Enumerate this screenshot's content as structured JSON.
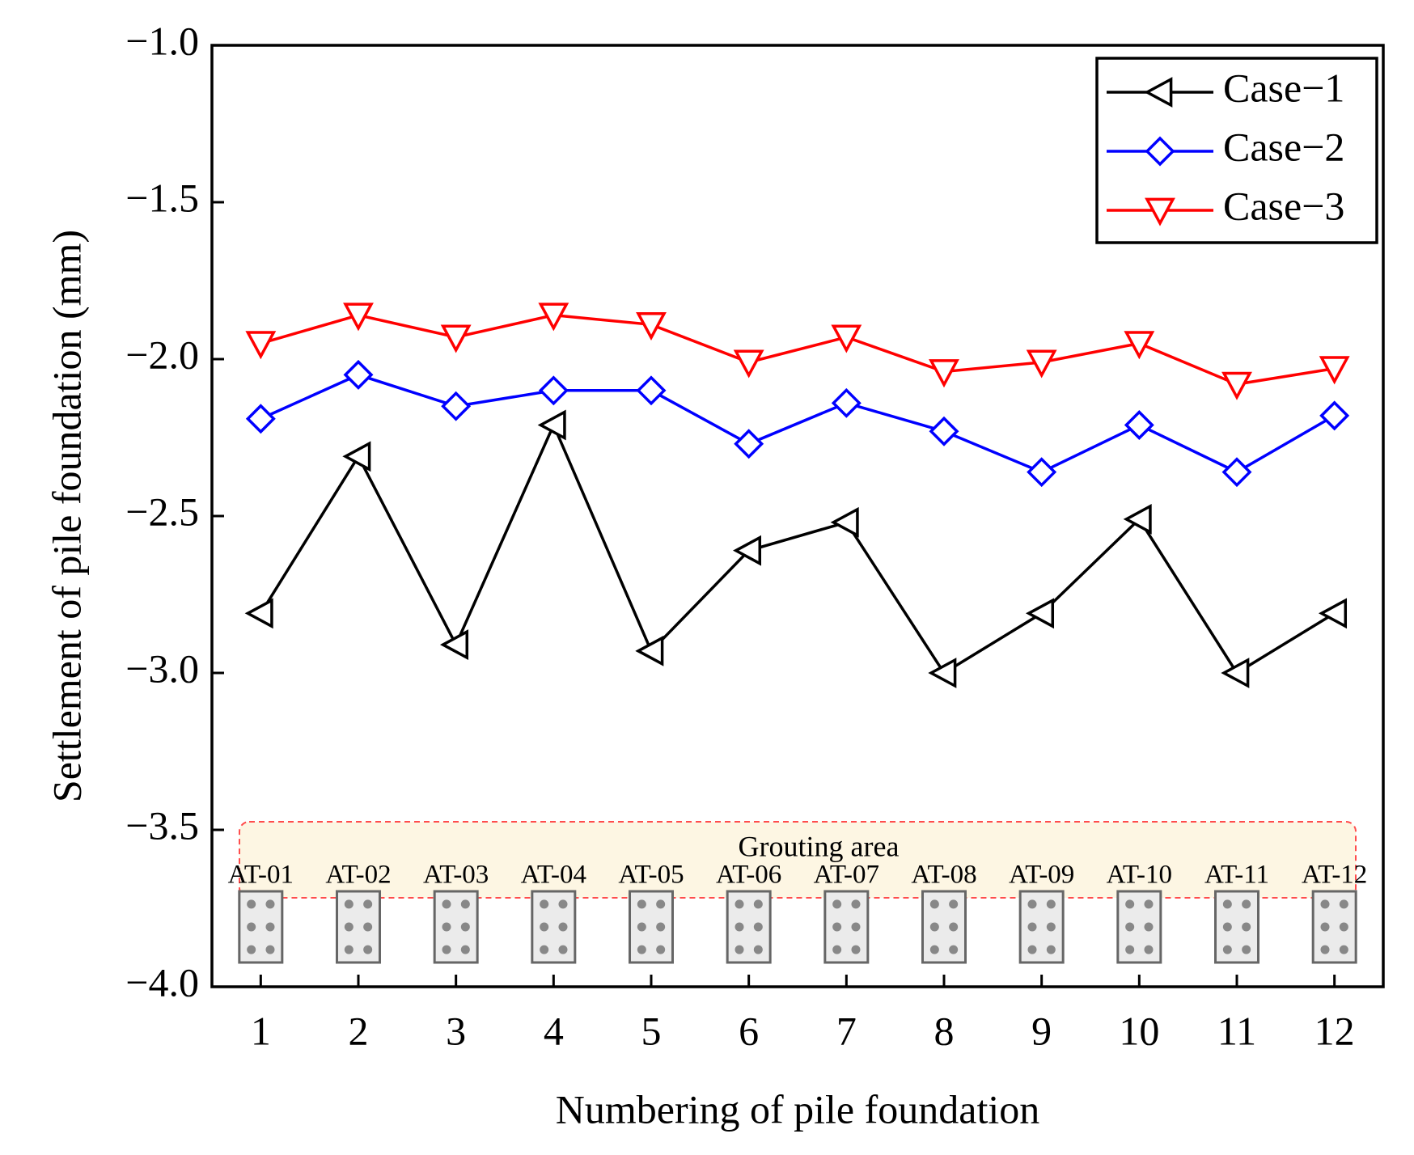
{
  "chart_data": {
    "type": "line",
    "title": "",
    "xlabel": "Numbering of pile foundation",
    "ylabel": "Settlement of pile foundation (mm)",
    "x": [
      1,
      2,
      3,
      4,
      5,
      6,
      7,
      8,
      9,
      10,
      11,
      12
    ],
    "xticks": [
      "1",
      "2",
      "3",
      "4",
      "5",
      "6",
      "7",
      "8",
      "9",
      "10",
      "11",
      "12"
    ],
    "xlim": [
      0.5,
      12.5
    ],
    "ylim": [
      -4.0,
      -1.0
    ],
    "yticks": [
      "−1.0",
      "−1.5",
      "−2.0",
      "−2.5",
      "−3.0",
      "−3.5",
      "−4.0"
    ],
    "ytick_values": [
      -1.0,
      -1.5,
      -2.0,
      -2.5,
      -3.0,
      -3.5,
      -4.0
    ],
    "legend_position": "top-right",
    "grid": false,
    "series": [
      {
        "name": "Case−1",
        "color": "#000000",
        "marker": "triangle-left",
        "values": [
          -2.81,
          -2.31,
          -2.91,
          -2.21,
          -2.93,
          -2.61,
          -2.52,
          -3.0,
          -2.81,
          -2.51,
          -3.0,
          -2.81
        ]
      },
      {
        "name": "Case−2",
        "color": "#0000ff",
        "marker": "diamond",
        "values": [
          -2.19,
          -2.05,
          -2.15,
          -2.1,
          -2.1,
          -2.27,
          -2.14,
          -2.23,
          -2.36,
          -2.21,
          -2.36,
          -2.18
        ]
      },
      {
        "name": "Case−3",
        "color": "#ff0000",
        "marker": "triangle-down",
        "values": [
          -1.95,
          -1.86,
          -1.93,
          -1.86,
          -1.89,
          -2.01,
          -1.93,
          -2.04,
          -2.01,
          -1.95,
          -2.08,
          -2.03
        ]
      }
    ],
    "annotations": {
      "grouting_area_label": "Grouting area",
      "grouting_area_fill": "#fdf6e3",
      "grouting_area_border": "#ff4d4d",
      "pile_labels": [
        "AT-01",
        "AT-02",
        "AT-03",
        "AT-04",
        "AT-05",
        "AT-06",
        "AT-07",
        "AT-08",
        "AT-09",
        "AT-10",
        "AT-11",
        "AT-12"
      ],
      "pile_fill": "#ebebeb",
      "pile_border": "#666666",
      "pile_dot_color": "#888888"
    }
  }
}
